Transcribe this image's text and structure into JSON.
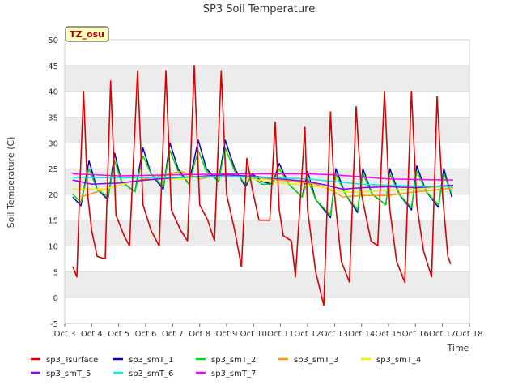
{
  "chart_data": {
    "type": "line",
    "title": "SP3 Soil Temperature",
    "xlabel": "Time",
    "ylabel": "Soil Temperature (C)",
    "badge": "TZ_osu",
    "xlim": [
      3,
      18
    ],
    "ylim": [
      -5,
      50
    ],
    "x_ticks": [
      {
        "v": 3,
        "label": "Oct 3"
      },
      {
        "v": 4,
        "label": "Oct 4"
      },
      {
        "v": 5,
        "label": "Oct 5"
      },
      {
        "v": 6,
        "label": "Oct 6"
      },
      {
        "v": 7,
        "label": "Oct 7"
      },
      {
        "v": 8,
        "label": "Oct 8"
      },
      {
        "v": 9,
        "label": "Oct 9"
      },
      {
        "v": 10,
        "label": "Oct 10"
      },
      {
        "v": 11,
        "label": "Oct 11"
      },
      {
        "v": 12,
        "label": "Oct 12"
      },
      {
        "v": 13,
        "label": "Oct 13"
      },
      {
        "v": 14,
        "label": "Oct 14"
      },
      {
        "v": 15,
        "label": "Oct 15"
      },
      {
        "v": 16,
        "label": "Oct 16"
      },
      {
        "v": 17,
        "label": "Oct 17"
      },
      {
        "v": 18,
        "label": "Oct 18"
      }
    ],
    "y_ticks": [
      -5,
      0,
      5,
      10,
      15,
      20,
      25,
      30,
      35,
      40,
      45,
      50
    ],
    "series": [
      {
        "name": "sp3_Tsurface",
        "color": "#dd0000",
        "width": 1.6,
        "points": [
          [
            3.3,
            6
          ],
          [
            3.45,
            4
          ],
          [
            3.55,
            20
          ],
          [
            3.7,
            40
          ],
          [
            3.85,
            20
          ],
          [
            4.0,
            13
          ],
          [
            4.2,
            8
          ],
          [
            4.5,
            7.5
          ],
          [
            4.7,
            42
          ],
          [
            4.9,
            16
          ],
          [
            5.2,
            12
          ],
          [
            5.4,
            10
          ],
          [
            5.7,
            44
          ],
          [
            5.9,
            18
          ],
          [
            6.2,
            13
          ],
          [
            6.5,
            10
          ],
          [
            6.75,
            44
          ],
          [
            6.95,
            17
          ],
          [
            7.3,
            13
          ],
          [
            7.55,
            11
          ],
          [
            7.8,
            45
          ],
          [
            8.0,
            18
          ],
          [
            8.3,
            15
          ],
          [
            8.55,
            11
          ],
          [
            8.8,
            44
          ],
          [
            9.0,
            20
          ],
          [
            9.3,
            13
          ],
          [
            9.55,
            6
          ],
          [
            9.75,
            27
          ],
          [
            9.95,
            21
          ],
          [
            10.2,
            15
          ],
          [
            10.6,
            15
          ],
          [
            10.8,
            34
          ],
          [
            10.95,
            17
          ],
          [
            11.1,
            12
          ],
          [
            11.4,
            11
          ],
          [
            11.55,
            4
          ],
          [
            11.9,
            33
          ],
          [
            12.0,
            17
          ],
          [
            12.3,
            5
          ],
          [
            12.6,
            -1.5
          ],
          [
            12.85,
            36
          ],
          [
            13.0,
            20
          ],
          [
            13.25,
            7
          ],
          [
            13.55,
            3
          ],
          [
            13.8,
            37
          ],
          [
            14.0,
            20
          ],
          [
            14.35,
            11
          ],
          [
            14.6,
            10
          ],
          [
            14.85,
            40
          ],
          [
            15.05,
            17
          ],
          [
            15.3,
            7
          ],
          [
            15.6,
            3
          ],
          [
            15.85,
            40
          ],
          [
            16.05,
            18
          ],
          [
            16.3,
            9
          ],
          [
            16.6,
            4
          ],
          [
            16.8,
            39
          ],
          [
            17.0,
            20
          ],
          [
            17.2,
            8
          ],
          [
            17.3,
            6.5
          ]
        ]
      },
      {
        "name": "sp3_smT_1",
        "color": "#0000cc",
        "width": 1.5,
        "points": [
          [
            3.3,
            19.5
          ],
          [
            3.6,
            17.8
          ],
          [
            3.9,
            26.5
          ],
          [
            4.2,
            21
          ],
          [
            4.6,
            19
          ],
          [
            4.85,
            28
          ],
          [
            5.1,
            22.5
          ],
          [
            5.6,
            20.5
          ],
          [
            5.9,
            29
          ],
          [
            6.2,
            24
          ],
          [
            6.65,
            21
          ],
          [
            6.9,
            30
          ],
          [
            7.2,
            25
          ],
          [
            7.6,
            22
          ],
          [
            7.95,
            30.5
          ],
          [
            8.25,
            25
          ],
          [
            8.7,
            22.5
          ],
          [
            8.95,
            30.5
          ],
          [
            9.3,
            25
          ],
          [
            9.7,
            21.5
          ],
          [
            9.95,
            24
          ],
          [
            10.3,
            22.5
          ],
          [
            10.7,
            22
          ],
          [
            10.95,
            26
          ],
          [
            11.3,
            22
          ],
          [
            11.8,
            19.5
          ],
          [
            12.0,
            24.5
          ],
          [
            12.3,
            19
          ],
          [
            12.85,
            15.5
          ],
          [
            13.05,
            25
          ],
          [
            13.4,
            20
          ],
          [
            13.85,
            16.5
          ],
          [
            14.05,
            25
          ],
          [
            14.4,
            20
          ],
          [
            14.9,
            18
          ],
          [
            15.05,
            25
          ],
          [
            15.4,
            20
          ],
          [
            15.85,
            17
          ],
          [
            16.05,
            25.5
          ],
          [
            16.4,
            20.5
          ],
          [
            16.85,
            17.5
          ],
          [
            17.05,
            25
          ],
          [
            17.35,
            19.5
          ]
        ]
      },
      {
        "name": "sp3_smT_2",
        "color": "#00dd00",
        "width": 1.5,
        "points": [
          [
            3.3,
            20
          ],
          [
            3.6,
            18.5
          ],
          [
            3.9,
            25
          ],
          [
            4.2,
            21
          ],
          [
            4.6,
            19.5
          ],
          [
            4.85,
            26.5
          ],
          [
            5.1,
            22.5
          ],
          [
            5.6,
            20.5
          ],
          [
            5.9,
            27.5
          ],
          [
            6.2,
            24
          ],
          [
            6.65,
            21.5
          ],
          [
            6.9,
            28.5
          ],
          [
            7.2,
            24.5
          ],
          [
            7.6,
            22
          ],
          [
            7.95,
            28.5
          ],
          [
            8.25,
            24.5
          ],
          [
            8.7,
            22.5
          ],
          [
            8.95,
            29
          ],
          [
            9.3,
            24.5
          ],
          [
            9.7,
            22
          ],
          [
            9.95,
            23.5
          ],
          [
            10.3,
            22
          ],
          [
            10.7,
            22
          ],
          [
            10.95,
            25
          ],
          [
            11.3,
            22
          ],
          [
            11.8,
            19.5
          ],
          [
            12.0,
            23
          ],
          [
            12.3,
            19
          ],
          [
            12.85,
            16
          ],
          [
            13.05,
            24
          ],
          [
            13.4,
            20
          ],
          [
            13.85,
            17
          ],
          [
            14.05,
            24
          ],
          [
            14.4,
            20
          ],
          [
            14.9,
            18
          ],
          [
            15.05,
            24
          ],
          [
            15.4,
            20
          ],
          [
            15.85,
            17.5
          ],
          [
            16.05,
            24.5
          ],
          [
            16.4,
            20.5
          ],
          [
            16.85,
            18
          ],
          [
            17.05,
            24
          ],
          [
            17.35,
            20
          ]
        ]
      },
      {
        "name": "sp3_smT_3",
        "color": "#ff9900",
        "width": 1.5,
        "points": [
          [
            3.6,
            19.5
          ],
          [
            4.5,
            21
          ],
          [
            5.5,
            22.5
          ],
          [
            6.5,
            23.5
          ],
          [
            7.3,
            24.5
          ],
          [
            8.0,
            23
          ],
          [
            9.0,
            24
          ],
          [
            9.7,
            23.5
          ],
          [
            10.5,
            23
          ],
          [
            11.5,
            22.5
          ],
          [
            12.3,
            22
          ],
          [
            12.8,
            21
          ],
          [
            13.3,
            19.5
          ],
          [
            14.0,
            19.8
          ],
          [
            15.0,
            19.8
          ],
          [
            16.0,
            20.5
          ],
          [
            17.0,
            21
          ],
          [
            17.4,
            21.3
          ]
        ]
      },
      {
        "name": "sp3_smT_4",
        "color": "#eeee00",
        "width": 1.5,
        "points": [
          [
            3.3,
            21
          ],
          [
            4.5,
            21
          ],
          [
            5.5,
            22.5
          ],
          [
            6.5,
            23
          ],
          [
            7.5,
            23
          ],
          [
            8.5,
            24
          ],
          [
            9.5,
            23.5
          ],
          [
            10.5,
            22.5
          ],
          [
            11.5,
            22
          ],
          [
            12.5,
            21.5
          ],
          [
            13.3,
            20.5
          ],
          [
            14.0,
            20.5
          ],
          [
            15.0,
            20.8
          ],
          [
            16.0,
            21
          ],
          [
            17.0,
            21.5
          ],
          [
            17.4,
            21.5
          ]
        ]
      },
      {
        "name": "sp3_smT_5",
        "color": "#8800ff",
        "width": 1.5,
        "points": [
          [
            3.3,
            22.8
          ],
          [
            4.0,
            22
          ],
          [
            5.0,
            22.2
          ],
          [
            6.0,
            22.8
          ],
          [
            7.0,
            23.2
          ],
          [
            8.0,
            23.5
          ],
          [
            9.0,
            23.8
          ],
          [
            10.0,
            23.5
          ],
          [
            11.0,
            23
          ],
          [
            12.0,
            22.5
          ],
          [
            12.7,
            21.8
          ],
          [
            13.3,
            21
          ],
          [
            14.0,
            21.3
          ],
          [
            15.0,
            21.5
          ],
          [
            16.0,
            21.3
          ],
          [
            16.6,
            21.5
          ],
          [
            17.4,
            21.8
          ]
        ]
      },
      {
        "name": "sp3_smT_6",
        "color": "#00eeee",
        "width": 1.5,
        "points": [
          [
            3.3,
            23.3
          ],
          [
            5.0,
            23.2
          ],
          [
            7.0,
            23.3
          ],
          [
            9.0,
            23.5
          ],
          [
            10.5,
            23.3
          ],
          [
            12.0,
            23
          ],
          [
            13.0,
            22.5
          ],
          [
            14.0,
            22
          ],
          [
            15.0,
            21.8
          ],
          [
            16.0,
            21.6
          ],
          [
            17.4,
            21.5
          ]
        ]
      },
      {
        "name": "sp3_smT_7",
        "color": "#ff00ff",
        "width": 1.5,
        "points": [
          [
            3.3,
            24
          ],
          [
            5.0,
            23.6
          ],
          [
            7.0,
            23.8
          ],
          [
            9.0,
            24
          ],
          [
            10.5,
            24
          ],
          [
            12.0,
            24
          ],
          [
            13.0,
            23.8
          ],
          [
            14.0,
            23.4
          ],
          [
            15.0,
            23
          ],
          [
            16.0,
            22.9
          ],
          [
            17.4,
            22.8
          ]
        ]
      }
    ]
  }
}
